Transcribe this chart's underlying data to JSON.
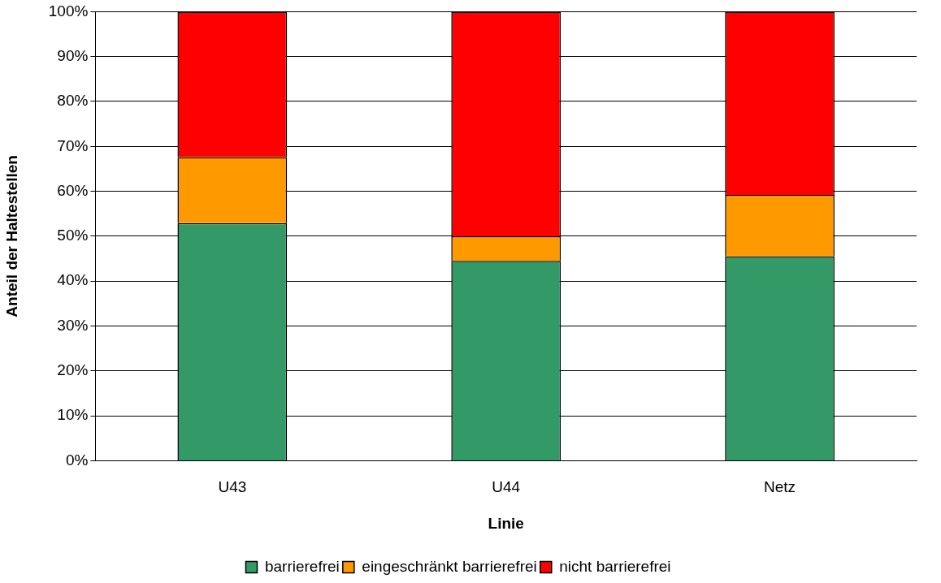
{
  "chart_data": {
    "type": "bar",
    "stacked": true,
    "xlabel": "Linie",
    "ylabel": "Anteil der Haltestellen",
    "categories": [
      "U43",
      "U44",
      "Netz"
    ],
    "series": [
      {
        "name": "barrierefrei",
        "color": "#339966",
        "values": [
          52.9,
          44.5,
          45.5
        ]
      },
      {
        "name": "eingeschränkt barrierefrei",
        "color": "#ff9900",
        "values": [
          14.7,
          5.5,
          13.7
        ]
      },
      {
        "name": "nicht barrierefrei",
        "color": "#ff0000",
        "values": [
          32.4,
          50,
          40.8
        ]
      }
    ],
    "ylim": [
      0,
      100
    ],
    "yticks": [
      {
        "value": 0,
        "label": "0%"
      },
      {
        "value": 10,
        "label": "10%"
      },
      {
        "value": 20,
        "label": "20%"
      },
      {
        "value": 30,
        "label": "30%"
      },
      {
        "value": 40,
        "label": "40%"
      },
      {
        "value": 50,
        "label": "50%"
      },
      {
        "value": 60,
        "label": "60%"
      },
      {
        "value": 70,
        "label": "70%"
      },
      {
        "value": 80,
        "label": "80%"
      },
      {
        "value": 90,
        "label": "90%"
      },
      {
        "value": 100,
        "label": "100%"
      }
    ],
    "grid": "y",
    "legend": "bottom"
  }
}
